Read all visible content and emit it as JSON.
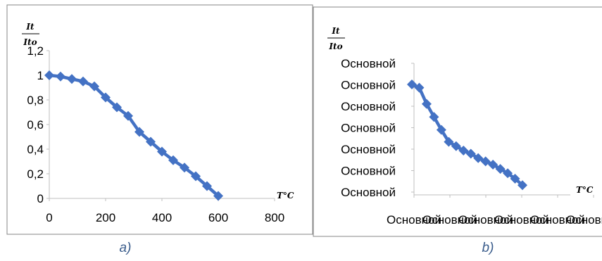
{
  "chart_data": [
    {
      "type": "line",
      "panel": "a",
      "caption": "a)",
      "ylabel": "It/Ito",
      "ylabel_numerator": "It",
      "ylabel_denominator": "Ito",
      "xlabel": "T°C",
      "xlim": [
        0,
        800
      ],
      "ylim": [
        0,
        1.2
      ],
      "x_ticks": [
        "0",
        "200",
        "400",
        "600",
        "800"
      ],
      "y_ticks": [
        "0",
        "0,2",
        "0,4",
        "0,6",
        "0,8",
        "1",
        "1,2"
      ],
      "series_color": "#4472c4",
      "series": [
        {
          "x": [
            0,
            40,
            80,
            120,
            160,
            200,
            240,
            280,
            320,
            360,
            400,
            440,
            480,
            520,
            560,
            600
          ],
          "values": [
            1.0,
            0.99,
            0.97,
            0.95,
            0.91,
            0.82,
            0.74,
            0.67,
            0.54,
            0.46,
            0.38,
            0.31,
            0.25,
            0.18,
            0.1,
            0.02
          ]
        }
      ]
    },
    {
      "type": "line",
      "panel": "b",
      "caption": "b)",
      "ylabel": "It/Ito",
      "ylabel_numerator": "It",
      "ylabel_denominator": "Ito",
      "xlabel": "T°C",
      "y_tick_text": "Основной",
      "x_tick_text": "Основной",
      "y_tick_count": 7,
      "x_tick_count": 6,
      "series_color": "#4472c4",
      "series": [
        {
          "x": [
            0,
            2,
            4,
            6,
            8,
            10,
            12,
            14,
            16,
            18,
            20,
            22,
            24,
            26,
            28,
            30
          ],
          "values": [
            1.0,
            0.97,
            0.82,
            0.7,
            0.58,
            0.47,
            0.43,
            0.39,
            0.36,
            0.32,
            0.29,
            0.26,
            0.22,
            0.18,
            0.13,
            0.07
          ]
        }
      ]
    }
  ]
}
